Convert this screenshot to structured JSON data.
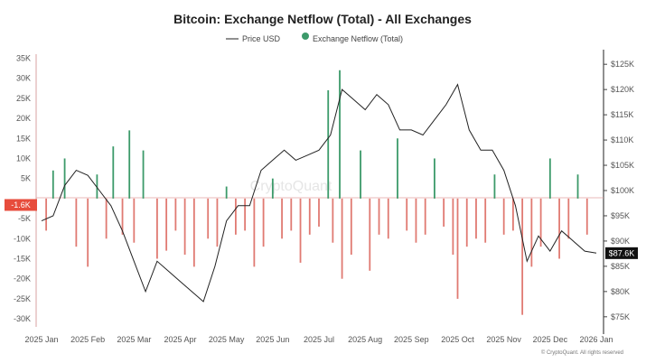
{
  "colors": {
    "inflow": "#e07a72",
    "outflow": "#3c9a6a",
    "price": "#222222",
    "left_badge": "#e74c3c",
    "right_badge": "#111111"
  },
  "chart_data": {
    "type": "bar",
    "title": "Bitcoin: Exchange Netflow (Total) - All Exchanges",
    "legend": [
      "Price USD",
      "Exchange Netflow (Total)"
    ],
    "legend_position": "top-center",
    "grid": false,
    "x_ticks": [
      "2025 Jan",
      "2025 Feb",
      "2025 Mar",
      "2025 Apr",
      "2025 May",
      "2025 Jun",
      "2025 Jul",
      "2025 Aug",
      "2025 Sep",
      "2025 Oct",
      "2025 Nov",
      "2025 Dec",
      "2026 Jan"
    ],
    "y_left_ticks": [
      "35K",
      "30K",
      "25K",
      "20K",
      "15K",
      "10K",
      "5K",
      "-5K",
      "-10K",
      "-15K",
      "-20K",
      "-25K",
      "-30K"
    ],
    "y_left_range": [
      -32000,
      36000
    ],
    "y_right_ticks": [
      "$125K",
      "$120K",
      "$115K",
      "$110K",
      "$105K",
      "$100K",
      "$95K",
      "$90K",
      "$85K",
      "$80K",
      "$75K"
    ],
    "y_right_range": [
      73000,
      127000
    ],
    "current_netflow_label": "-1.6K",
    "current_price_label": "$87.6K",
    "watermark": "CryptoQuant",
    "credit": "© CryptoQuant. All rights reserved",
    "price_series": {
      "name": "Price USD",
      "x_months": [
        0.0,
        0.25,
        0.5,
        0.75,
        1.0,
        1.25,
        1.5,
        1.75,
        2.0,
        2.25,
        2.5,
        2.75,
        3.0,
        3.25,
        3.5,
        3.75,
        4.0,
        4.25,
        4.5,
        4.75,
        5.0,
        5.25,
        5.5,
        5.75,
        6.0,
        6.25,
        6.5,
        6.75,
        7.0,
        7.25,
        7.5,
        7.75,
        8.0,
        8.25,
        8.5,
        8.75,
        9.0,
        9.25,
        9.5,
        9.75,
        10.0,
        10.25,
        10.5,
        10.75,
        11.0,
        11.25,
        11.5,
        11.75,
        12.0
      ],
      "values": [
        94000,
        95000,
        101000,
        104000,
        103000,
        100000,
        97000,
        92000,
        86000,
        80000,
        86000,
        84000,
        82000,
        80000,
        78000,
        85000,
        94000,
        97000,
        97000,
        104000,
        106000,
        108000,
        106000,
        107000,
        108000,
        111000,
        120000,
        118000,
        116000,
        119000,
        117000,
        112000,
        112000,
        111000,
        114000,
        117000,
        121000,
        112000,
        108000,
        108000,
        104000,
        97000,
        86000,
        91000,
        88000,
        92000,
        90000,
        88000,
        87600
      ]
    },
    "netflow_series": {
      "name": "Exchange Netflow (Total)",
      "x_months": [
        0.1,
        0.25,
        0.5,
        0.75,
        1.0,
        1.2,
        1.4,
        1.55,
        1.75,
        1.9,
        2.0,
        2.2,
        2.5,
        2.7,
        2.9,
        3.1,
        3.3,
        3.6,
        3.8,
        4.0,
        4.2,
        4.4,
        4.6,
        4.8,
        5.0,
        5.2,
        5.4,
        5.6,
        5.8,
        6.0,
        6.2,
        6.3,
        6.45,
        6.5,
        6.7,
        6.9,
        7.1,
        7.3,
        7.5,
        7.7,
        7.9,
        8.1,
        8.3,
        8.5,
        8.7,
        8.9,
        9.0,
        9.2,
        9.4,
        9.6,
        9.8,
        10.0,
        10.2,
        10.4,
        10.6,
        10.8,
        11.0,
        11.2,
        11.4,
        11.6,
        11.8
      ],
      "values": [
        -8000,
        7000,
        10000,
        -12000,
        -17000,
        6000,
        -10000,
        13000,
        -9000,
        17000,
        -11000,
        12000,
        -15000,
        -13000,
        -8000,
        -14000,
        -17000,
        -10000,
        -12000,
        3000,
        -9000,
        -8000,
        -17000,
        -12000,
        5000,
        -10000,
        -8000,
        -16000,
        -9000,
        -7000,
        27000,
        -11000,
        32000,
        -20000,
        -14000,
        12000,
        -18000,
        -9000,
        -10000,
        15000,
        -8000,
        -11000,
        -9000,
        10000,
        -7000,
        -14000,
        -25000,
        -12000,
        -10000,
        -11000,
        6000,
        -9000,
        -8000,
        -29000,
        -17000,
        -12000,
        10000,
        -15000,
        -10000,
        6000,
        -9000
      ]
    }
  }
}
